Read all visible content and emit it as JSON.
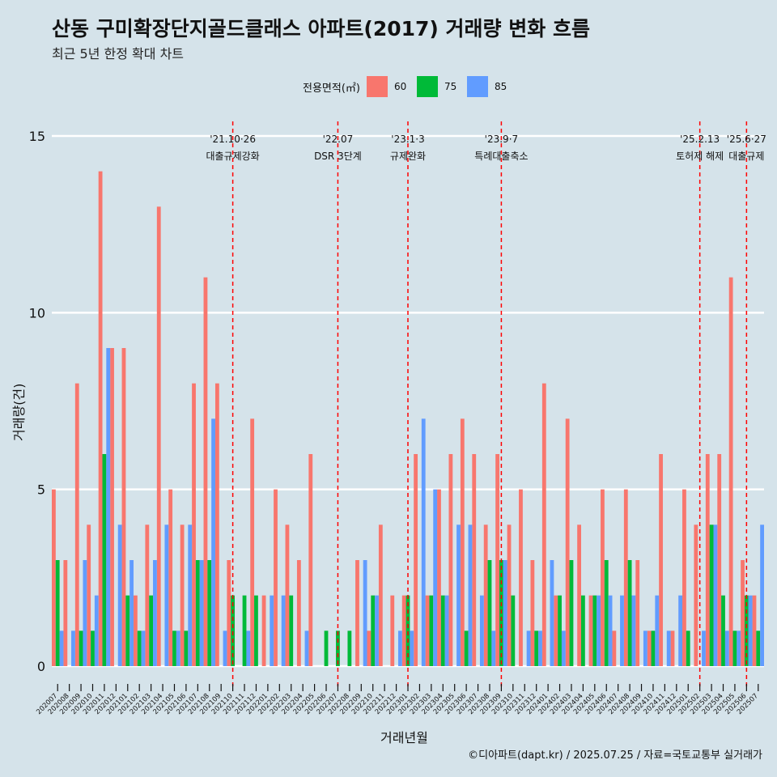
{
  "header": {
    "title": "산동 구미확장단지골드클래스 아파트(2017) 거래량 변화 흐름",
    "subtitle": "최근 5년 한정 확대 차트"
  },
  "legend": {
    "title": "전용면적(㎡)",
    "items": [
      {
        "label": "60",
        "color": "#f8766d"
      },
      {
        "label": "75",
        "color": "#00ba38"
      },
      {
        "label": "85",
        "color": "#619cff"
      }
    ]
  },
  "caption": "©디아파트(dapt.kr) / 2025.07.25 / 자료=국토교통부 실거래가",
  "chart_data": {
    "type": "bar",
    "title": "산동 구미확장단지골드클래스 아파트(2017) 거래량 변화 흐름",
    "xlabel": "거래년월",
    "ylabel": "거래량(건)",
    "ylim": [
      0,
      15
    ],
    "yticks": [
      0,
      5,
      10,
      15
    ],
    "categories": [
      "202007",
      "202008",
      "202009",
      "202010",
      "202011",
      "202012",
      "202101",
      "202102",
      "202103",
      "202104",
      "202105",
      "202106",
      "202107",
      "202108",
      "202109",
      "202110",
      "202111",
      "202112",
      "202201",
      "202202",
      "202203",
      "202204",
      "202205",
      "202206",
      "202207",
      "202208",
      "202209",
      "202210",
      "202211",
      "202212",
      "202301",
      "202302",
      "202303",
      "202304",
      "202305",
      "202306",
      "202307",
      "202308",
      "202309",
      "202310",
      "202311",
      "202312",
      "202401",
      "202402",
      "202403",
      "202404",
      "202405",
      "202406",
      "202407",
      "202408",
      "202409",
      "202410",
      "202411",
      "202412",
      "202501",
      "202502",
      "202503",
      "202504",
      "202505",
      "202506",
      "202507"
    ],
    "series": [
      {
        "name": "60",
        "color": "#f8766d",
        "values": [
          5,
          3,
          8,
          4,
          14,
          9,
          9,
          2,
          4,
          13,
          5,
          4,
          8,
          11,
          8,
          3,
          0,
          7,
          2,
          5,
          4,
          3,
          6,
          0,
          0,
          0,
          3,
          1,
          4,
          2,
          2,
          6,
          2,
          5,
          6,
          7,
          6,
          4,
          6,
          4,
          5,
          3,
          8,
          2,
          7,
          4,
          2,
          5,
          1,
          5,
          3,
          1,
          6,
          1,
          5,
          4,
          6,
          6,
          11,
          3,
          2
        ]
      },
      {
        "name": "75",
        "color": "#00ba38",
        "values": [
          3,
          0,
          1,
          1,
          6,
          0,
          2,
          1,
          2,
          0,
          1,
          1,
          3,
          3,
          0,
          2,
          2,
          2,
          0,
          0,
          2,
          0,
          0,
          1,
          1,
          1,
          0,
          2,
          0,
          0,
          2,
          0,
          2,
          2,
          0,
          1,
          0,
          3,
          3,
          2,
          0,
          1,
          0,
          2,
          3,
          2,
          2,
          3,
          0,
          3,
          0,
          1,
          0,
          0,
          1,
          0,
          4,
          2,
          1,
          2,
          1
        ]
      },
      {
        "name": "85",
        "color": "#619cff",
        "values": [
          1,
          1,
          3,
          2,
          9,
          4,
          3,
          1,
          3,
          4,
          1,
          4,
          3,
          7,
          1,
          0,
          1,
          0,
          2,
          2,
          0,
          1,
          0,
          0,
          0,
          0,
          3,
          2,
          0,
          1,
          1,
          7,
          5,
          2,
          4,
          4,
          2,
          1,
          3,
          0,
          1,
          1,
          3,
          1,
          0,
          0,
          2,
          2,
          2,
          2,
          1,
          2,
          1,
          2,
          0,
          1,
          4,
          1,
          1,
          2,
          4
        ]
      }
    ],
    "events": [
      {
        "date": "'21.10·26",
        "label": "대출규제강화",
        "index": 15
      },
      {
        "date": "'22.07",
        "label": "DSR 3단계",
        "index": 24
      },
      {
        "date": "'23.1·3",
        "label": "규제완화",
        "index": 30
      },
      {
        "date": "'23.9·7",
        "label": "특례대출축소",
        "index": 38
      },
      {
        "date": "'25.2.13",
        "label": "토허제 해제",
        "index": 55
      },
      {
        "date": "'25.6·27",
        "label": "대출규제",
        "index": 59
      }
    ]
  }
}
